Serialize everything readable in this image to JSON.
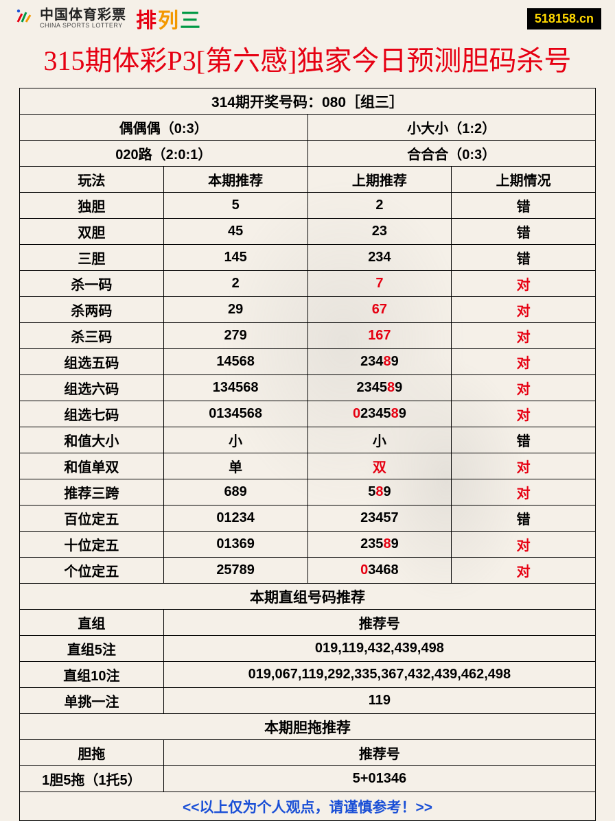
{
  "header": {
    "logo_cn": "中国体育彩票",
    "logo_en": "CHINA SPORTS LOTTERY",
    "pailie": [
      "排",
      "列",
      "三"
    ],
    "site": "518158.cn"
  },
  "title": "315期体彩P3[第六感]独家今日预测胆码杀号",
  "draw_info": "314期开奖号码：080［组三］",
  "meta": {
    "left1": "偶偶偶（0:3）",
    "right1": "小大小（1:2）",
    "left2": "020路（2:0:1）",
    "right2": "合合合（0:3）"
  },
  "columns": {
    "c1": "玩法",
    "c2": "本期推荐",
    "c3": "上期推荐",
    "c4": "上期情况"
  },
  "rows": [
    {
      "name": "独胆",
      "cur": "5",
      "prev": [
        {
          "t": "2"
        }
      ],
      "res": "错",
      "res_red": false
    },
    {
      "name": "双胆",
      "cur": "45",
      "prev": [
        {
          "t": "23"
        }
      ],
      "res": "错",
      "res_red": false
    },
    {
      "name": "三胆",
      "cur": "145",
      "prev": [
        {
          "t": "234"
        }
      ],
      "res": "错",
      "res_red": false
    },
    {
      "name": "杀一码",
      "cur": "2",
      "prev": [
        {
          "t": "7",
          "r": true
        }
      ],
      "res": "对",
      "res_red": true
    },
    {
      "name": "杀两码",
      "cur": "29",
      "prev": [
        {
          "t": "67",
          "r": true
        }
      ],
      "res": "对",
      "res_red": true
    },
    {
      "name": "杀三码",
      "cur": "279",
      "prev": [
        {
          "t": "167",
          "r": true
        }
      ],
      "res": "对",
      "res_red": true
    },
    {
      "name": "组选五码",
      "cur": "14568",
      "prev": [
        {
          "t": "234"
        },
        {
          "t": "8",
          "r": true
        },
        {
          "t": "9"
        }
      ],
      "res": "对",
      "res_red": true
    },
    {
      "name": "组选六码",
      "cur": "134568",
      "prev": [
        {
          "t": "2345"
        },
        {
          "t": "8",
          "r": true
        },
        {
          "t": "9"
        }
      ],
      "res": "对",
      "res_red": true
    },
    {
      "name": "组选七码",
      "cur": "0134568",
      "prev": [
        {
          "t": "0",
          "r": true
        },
        {
          "t": "2345"
        },
        {
          "t": "8",
          "r": true
        },
        {
          "t": "9"
        }
      ],
      "res": "对",
      "res_red": true
    },
    {
      "name": "和值大小",
      "cur": "小",
      "prev": [
        {
          "t": "小"
        }
      ],
      "res": "错",
      "res_red": false
    },
    {
      "name": "和值单双",
      "cur": "单",
      "prev": [
        {
          "t": "双",
          "r": true
        }
      ],
      "res": "对",
      "res_red": true
    },
    {
      "name": "推荐三跨",
      "cur": "689",
      "prev": [
        {
          "t": "5"
        },
        {
          "t": "8",
          "r": true
        },
        {
          "t": "9"
        }
      ],
      "res": "对",
      "res_red": true
    },
    {
      "name": "百位定五",
      "cur": "01234",
      "prev": [
        {
          "t": "23457"
        }
      ],
      "res": "错",
      "res_red": false
    },
    {
      "name": "十位定五",
      "cur": "01369",
      "prev": [
        {
          "t": "235"
        },
        {
          "t": "8",
          "r": true
        },
        {
          "t": "9"
        }
      ],
      "res": "对",
      "res_red": true
    },
    {
      "name": "个位定五",
      "cur": "25789",
      "prev": [
        {
          "t": "0",
          "r": true
        },
        {
          "t": "3468"
        }
      ],
      "res": "对",
      "res_red": true
    }
  ],
  "section2_title": "本期直组号码推荐",
  "section2_cols": {
    "c1": "直组",
    "c2": "推荐号"
  },
  "section2_rows": [
    {
      "name": "直组5注",
      "val": "019,119,432,439,498"
    },
    {
      "name": "直组10注",
      "val": "019,067,119,292,335,367,432,439,462,498"
    },
    {
      "name": "单挑一注",
      "val": "119"
    }
  ],
  "section3_title": "本期胆拖推荐",
  "section3_cols": {
    "c1": "胆拖",
    "c2": "推荐号"
  },
  "section3_rows": [
    {
      "name": "1胆5拖（1托5）",
      "val": "5+01346"
    }
  ],
  "footer": "<<以上仅为个人观点，请谨慎参考！>>",
  "colors": {
    "red": "#e60012",
    "blue": "#1a4fd6",
    "black": "#000000",
    "bg": "#f5f0e8"
  }
}
